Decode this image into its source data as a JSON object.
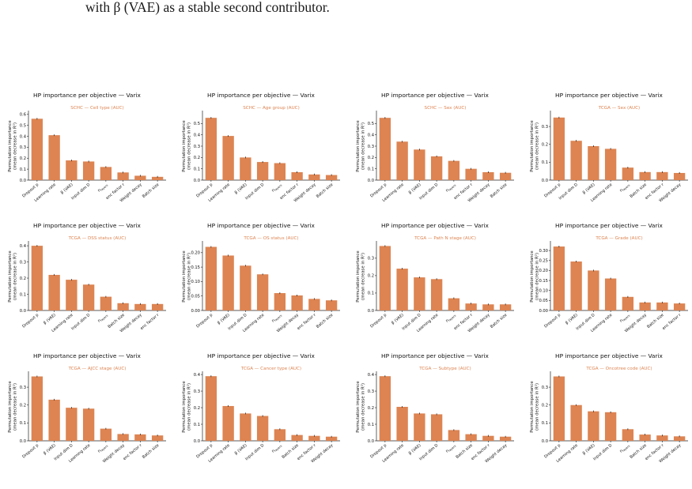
{
  "page": {
    "top_text": "with β (VAE) as a stable second contributor.",
    "bottom_text": ""
  },
  "colors": {
    "bar": "#dd8452",
    "subtitle": "#dd8452",
    "errorbar": "#1a1a1a"
  },
  "chart_data": [
    {
      "type": "bar",
      "title": "HP importance per objective — Varix",
      "subtitle": "SCHC — Cell type (AUC)",
      "ylabel": "Permutation importance\n(mean decrease in R²)",
      "categories": [
        "Dropout p",
        "Learning rate",
        "β (VAE)",
        "Input dim D",
        "n_layers",
        "enc factor r",
        "Weight decay",
        "Batch size"
      ],
      "values": [
        0.56,
        0.41,
        0.18,
        0.17,
        0.12,
        0.07,
        0.04,
        0.03
      ],
      "ylim": [
        0,
        0.62
      ],
      "ticks": [
        0.0,
        0.1,
        0.2,
        0.3,
        0.4,
        0.5,
        0.6
      ],
      "tick_labels": [
        "0.0",
        "0.1",
        "0.2",
        "0.3",
        "0.4",
        "0.5",
        "0.6"
      ]
    },
    {
      "type": "bar",
      "title": "HP importance per objective — Varix",
      "subtitle": "SCHC — Age group (AUC)",
      "ylabel": "Permutation importance\n(mean decrease in R²)",
      "categories": [
        "Dropout p",
        "Learning rate",
        "β (VAE)",
        "Input dim D",
        "n_layers",
        "enc factor r",
        "Weight decay",
        "Batch size"
      ],
      "values": [
        0.55,
        0.39,
        0.2,
        0.16,
        0.15,
        0.07,
        0.05,
        0.045
      ],
      "ylim": [
        0,
        0.6
      ],
      "ticks": [
        0.0,
        0.1,
        0.2,
        0.3,
        0.4,
        0.5
      ],
      "tick_labels": [
        "0.0",
        "0.1",
        "0.2",
        "0.3",
        "0.4",
        "0.5"
      ]
    },
    {
      "type": "bar",
      "title": "HP importance per objective — Varix",
      "subtitle": "SCHC — Sex (AUC)",
      "ylabel": "Permutation importance\n(mean decrease in R²)",
      "categories": [
        "Dropout p",
        "Learning rate",
        "β (VAE)",
        "Input dim D",
        "n_layers",
        "enc factor r",
        "Weight decay",
        "Batch size"
      ],
      "values": [
        0.55,
        0.34,
        0.27,
        0.21,
        0.17,
        0.1,
        0.07,
        0.065
      ],
      "ylim": [
        0,
        0.6
      ],
      "ticks": [
        0.0,
        0.1,
        0.2,
        0.3,
        0.4,
        0.5
      ],
      "tick_labels": [
        "0.0",
        "0.1",
        "0.2",
        "0.3",
        "0.4",
        "0.5"
      ]
    },
    {
      "type": "bar",
      "title": "HP importance per objective — Varix",
      "subtitle": "TCGA — Sex (AUC)",
      "ylabel": "Permutation importance\n(mean decrease in R²)",
      "categories": [
        "Dropout p",
        "Input dim D",
        "β (VAE)",
        "Learning rate",
        "n_layers",
        "Batch size",
        "enc factor r",
        "Weight decay"
      ],
      "values": [
        0.35,
        0.22,
        0.19,
        0.175,
        0.07,
        0.045,
        0.045,
        0.04
      ],
      "ylim": [
        0,
        0.38
      ],
      "ticks": [
        0.0,
        0.1,
        0.2,
        0.3
      ],
      "tick_labels": [
        "0.0",
        "0.1",
        "0.2",
        "0.3"
      ]
    },
    {
      "type": "bar",
      "title": "HP importance per objective — Varix",
      "subtitle": "TCGA — DSS status (AUC)",
      "ylabel": "Permutation importance\n(mean decrease in R²)",
      "categories": [
        "Dropout p",
        "β (VAE)",
        "Learning rate",
        "Input dim D",
        "n_layers",
        "Batch size",
        "Weight decay",
        "enc factor r"
      ],
      "values": [
        0.4,
        0.22,
        0.19,
        0.16,
        0.085,
        0.045,
        0.04,
        0.04
      ],
      "ylim": [
        0,
        0.42
      ],
      "ticks": [
        0.0,
        0.1,
        0.2,
        0.3,
        0.4
      ],
      "tick_labels": [
        "0.0",
        "0.1",
        "0.2",
        "0.3",
        "0.4"
      ]
    },
    {
      "type": "bar",
      "title": "HP importance per objective — Varix",
      "subtitle": "TCGA — OS status (AUC)",
      "ylabel": "Permutation importance\n(mean decrease in R²)",
      "categories": [
        "Dropout p",
        "β (VAE)",
        "Input dim D",
        "Learning rate",
        "n_layers",
        "Weight decay",
        "enc factor r",
        "Batch size"
      ],
      "values": [
        0.22,
        0.19,
        0.155,
        0.125,
        0.06,
        0.052,
        0.04,
        0.035
      ],
      "ylim": [
        0,
        0.235
      ],
      "ticks": [
        0.0,
        0.05,
        0.1,
        0.15,
        0.2
      ],
      "tick_labels": [
        "0.00",
        "0.05",
        "0.10",
        "0.15",
        "0.20"
      ]
    },
    {
      "type": "bar",
      "title": "HP importance per objective — Varix",
      "subtitle": "TCGA — Path N stage (AUC)",
      "ylabel": "Permutation importance\n(mean decrease in R²)",
      "categories": [
        "Dropout p",
        "β (VAE)",
        "Input dim D",
        "Learning rate",
        "n_layers",
        "enc factor r",
        "Weight decay",
        "Batch size"
      ],
      "values": [
        0.37,
        0.24,
        0.19,
        0.18,
        0.07,
        0.04,
        0.035,
        0.035
      ],
      "ylim": [
        0,
        0.39
      ],
      "ticks": [
        0.0,
        0.1,
        0.2,
        0.3
      ],
      "tick_labels": [
        "0.0",
        "0.1",
        "0.2",
        "0.3"
      ]
    },
    {
      "type": "bar",
      "title": "HP importance per objective — Varix",
      "subtitle": "TCGA — Grade (AUC)",
      "ylabel": "Permutation importance\n(mean decrease in R²)",
      "categories": [
        "Dropout p",
        "β (VAE)",
        "Input dim D",
        "Learning rate",
        "n_layers",
        "Weight decay",
        "Batch size",
        "enc factor r"
      ],
      "values": [
        0.32,
        0.245,
        0.2,
        0.16,
        0.068,
        0.04,
        0.04,
        0.035
      ],
      "ylim": [
        0,
        0.34
      ],
      "ticks": [
        0.0,
        0.05,
        0.1,
        0.15,
        0.2,
        0.25,
        0.3
      ],
      "tick_labels": [
        "0.00",
        "0.05",
        "0.10",
        "0.15",
        "0.20",
        "0.25",
        "0.30"
      ]
    },
    {
      "type": "bar",
      "title": "HP importance per objective — Varix",
      "subtitle": "TCGA — AJCC stage (AUC)",
      "ylabel": "Permutation importance\n(mean decrease in R²)",
      "categories": [
        "Dropout p",
        "β (VAE)",
        "Input dim D",
        "Learning rate",
        "n_layers",
        "Weight decay",
        "enc factor r",
        "Batch size"
      ],
      "values": [
        0.36,
        0.23,
        0.185,
        0.18,
        0.068,
        0.038,
        0.036,
        0.03
      ],
      "ylim": [
        0,
        0.38
      ],
      "ticks": [
        0.0,
        0.1,
        0.2,
        0.3
      ],
      "tick_labels": [
        "0.0",
        "0.1",
        "0.2",
        "0.3"
      ]
    },
    {
      "type": "bar",
      "title": "HP importance per objective — Varix",
      "subtitle": "TCGA — Cancer type (AUC)",
      "ylabel": "Permutation importance\n(mean decrease in R²)",
      "categories": [
        "Dropout p",
        "Learning rate",
        "β (VAE)",
        "Input dim D",
        "n_layers",
        "Batch size",
        "enc factor r",
        "Weight decay"
      ],
      "values": [
        0.39,
        0.21,
        0.165,
        0.15,
        0.07,
        0.035,
        0.03,
        0.025
      ],
      "ylim": [
        0,
        0.41
      ],
      "ticks": [
        0.0,
        0.1,
        0.2,
        0.3,
        0.4
      ],
      "tick_labels": [
        "0.0",
        "0.1",
        "0.2",
        "0.3",
        "0.4"
      ]
    },
    {
      "type": "bar",
      "title": "HP importance per objective — Varix",
      "subtitle": "TCGA — Subtype (AUC)",
      "ylabel": "Permutation importance\n(mean decrease in R²)",
      "categories": [
        "Dropout p",
        "Learning rate",
        "β (VAE)",
        "Input dim D",
        "n_layers",
        "Batch size",
        "enc factor r",
        "Weight decay"
      ],
      "values": [
        0.39,
        0.205,
        0.165,
        0.16,
        0.065,
        0.04,
        0.03,
        0.025
      ],
      "ylim": [
        0,
        0.41
      ],
      "ticks": [
        0.0,
        0.1,
        0.2,
        0.3,
        0.4
      ],
      "tick_labels": [
        "0.0",
        "0.1",
        "0.2",
        "0.3",
        "0.4"
      ]
    },
    {
      "type": "bar",
      "title": "HP importance per objective — Varix",
      "subtitle": "TCGA — Oncotree code (AUC)",
      "ylabel": "Permutation importance\n(mean decrease in R²)",
      "categories": [
        "Dropout p",
        "Learning rate",
        "β (VAE)",
        "Input dim D",
        "n_layers",
        "Batch size",
        "enc factor r",
        "Weight decay"
      ],
      "values": [
        0.36,
        0.2,
        0.165,
        0.16,
        0.065,
        0.035,
        0.03,
        0.025
      ],
      "ylim": [
        0,
        0.38
      ],
      "ticks": [
        0.0,
        0.1,
        0.2,
        0.3
      ],
      "tick_labels": [
        "0.0",
        "0.1",
        "0.2",
        "0.3"
      ]
    }
  ]
}
